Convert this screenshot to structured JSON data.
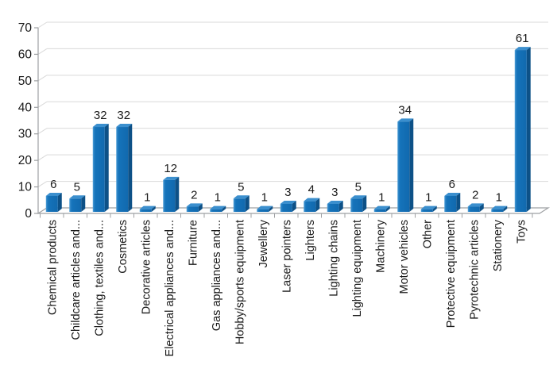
{
  "chart_data": {
    "type": "bar",
    "title": "",
    "subtitle": "",
    "xlabel": "",
    "ylabel": "",
    "legend": false,
    "grid": true,
    "style_3d": true,
    "ylim": [
      0,
      70
    ],
    "yticks": [
      0,
      10,
      20,
      30,
      40,
      50,
      60,
      70
    ],
    "categories": [
      "Chemical products",
      "Childcare articles and...",
      "Clothing, textiles and...",
      "Cosmetics",
      "Decorative articles",
      "Electrical appliances and...",
      "Furniture",
      "Gas appliances and...",
      "Hobby/sports equipment",
      "Jewellery",
      "Laser pointers",
      "Lighters",
      "Lighting chains",
      "Lighting equipment",
      "Machinery",
      "Motor vehicles",
      "Other",
      "Protective equipment",
      "Pyrotechnic articles",
      "Stationery",
      "Toys"
    ],
    "values": [
      6,
      5,
      32,
      32,
      1,
      12,
      2,
      1,
      5,
      1,
      3,
      4,
      3,
      5,
      1,
      34,
      1,
      6,
      2,
      1,
      61
    ],
    "data_labels_shown": true,
    "colors": {
      "bar_front": "#1573BA",
      "bar_front_highlight": "#5AA7DC",
      "bar_side": "#0D5187",
      "bar_top": "#3B8FCE",
      "gridline": "#D9D9D9",
      "axis_line": "#9EA0A3",
      "text": "#1A1A1A",
      "background": "#FFFFFF"
    }
  }
}
